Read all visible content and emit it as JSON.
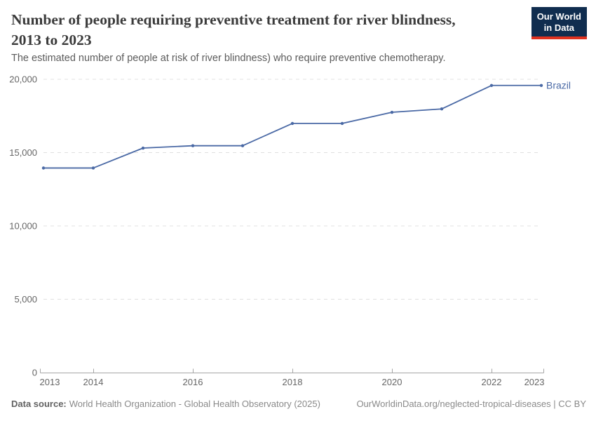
{
  "header": {
    "title_line1": "Number of people requiring preventive treatment for river blindness,",
    "title_line2": "2013 to 2023",
    "subtitle": "The estimated number of people at risk of river blindness) who require preventive chemotherapy."
  },
  "logo": {
    "line1": "Our World",
    "line2": "in Data",
    "bg_color": "#102d4f",
    "accent_color": "#e0321f"
  },
  "chart_data": {
    "type": "line",
    "title": "Number of people requiring preventive treatment for river blindness, 2013 to 2023",
    "subtitle": "The estimated number of people at risk of river blindness) who require preventive chemotherapy.",
    "series": [
      {
        "name": "Brazil",
        "x": [
          2013,
          2014,
          2015,
          2016,
          2017,
          2018,
          2019,
          2020,
          2021,
          2022,
          2023
        ],
        "values": [
          13950,
          13950,
          15310,
          15470,
          15470,
          16990,
          16990,
          17750,
          17980,
          19580,
          19580
        ]
      }
    ],
    "series_color": "#4a69a5",
    "end_label": "Brazil",
    "ylim": [
      0,
      20000
    ],
    "yticks": [
      0,
      5000,
      10000,
      15000,
      20000
    ],
    "ytick_labels": [
      "0",
      "5,000",
      "10,000",
      "15,000",
      "20,000"
    ],
    "xticks": [
      2013,
      2014,
      2016,
      2018,
      2020,
      2022,
      2023
    ],
    "xtick_labels": [
      "2013",
      "2014",
      "2016",
      "2018",
      "2020",
      "2022",
      "2023"
    ],
    "grid": "horizontal-dashed",
    "grid_color": "#e0e0e0",
    "axis_color": "#a5a5a5",
    "tick_label_color": "#666666",
    "legend_position": "end-of-line"
  },
  "footer": {
    "datasource_label": "Data source:",
    "datasource_text": "World Health Organization - Global Health Observatory (2025)",
    "right_text": "OurWorldinData.org/neglected-tropical-diseases | CC BY"
  }
}
